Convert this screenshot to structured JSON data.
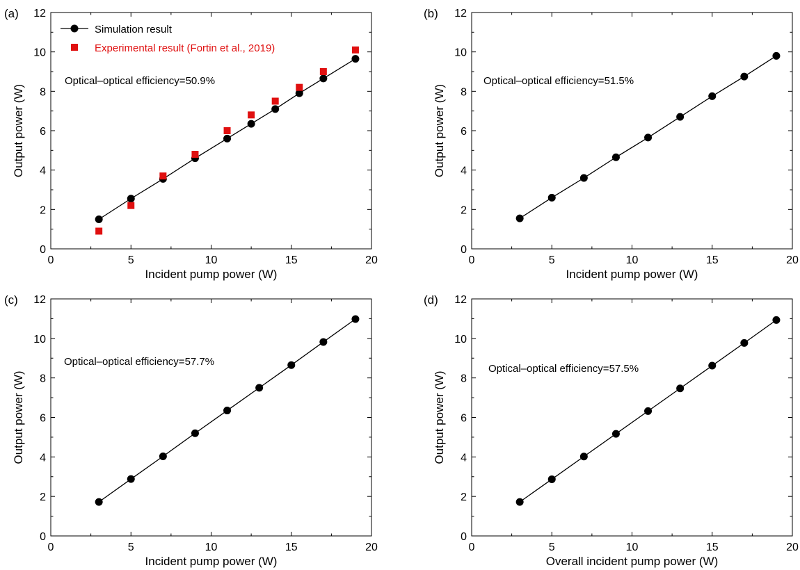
{
  "colors": {
    "simulation": "#000000",
    "experimental": "#e01010",
    "axis": "#000000"
  },
  "chart_data": [
    {
      "type": "scatter",
      "panel_label": "(a)",
      "xlabel": "Incident pump power (W)",
      "ylabel": "Output power (W)",
      "xlim": [
        0,
        20
      ],
      "ylim": [
        0,
        12
      ],
      "xticks": [
        "0",
        "5",
        "10",
        "15",
        "20"
      ],
      "yticks": [
        "0",
        "2",
        "4",
        "6",
        "8",
        "10",
        "12"
      ],
      "annotation": "Optical–optical efficiency=50.9%",
      "legend": [
        "Simulation result",
        "Experimental result (Fortin et al., 2019)"
      ],
      "legend_position": "top-left",
      "series": [
        {
          "name": "Simulation result",
          "marker": "circle",
          "line": true,
          "x": [
            3,
            5,
            7,
            9,
            11,
            12.5,
            14,
            15.5,
            17,
            19
          ],
          "y": [
            1.5,
            2.55,
            3.55,
            4.6,
            5.6,
            6.35,
            7.1,
            7.9,
            8.65,
            9.65
          ]
        },
        {
          "name": "Experimental result (Fortin et al., 2019)",
          "marker": "square",
          "line": false,
          "x": [
            3,
            5,
            7,
            9,
            11,
            12.5,
            14,
            15.5,
            17,
            19
          ],
          "y": [
            0.9,
            2.2,
            3.7,
            4.8,
            6.0,
            6.8,
            7.5,
            8.2,
            9.0,
            10.1
          ]
        }
      ]
    },
    {
      "type": "scatter",
      "panel_label": "(b)",
      "xlabel": "Incident pump power (W)",
      "ylabel": "Output power (W)",
      "xlim": [
        0,
        20
      ],
      "ylim": [
        0,
        12
      ],
      "xticks": [
        "0",
        "5",
        "10",
        "15",
        "20"
      ],
      "yticks": [
        "0",
        "2",
        "4",
        "6",
        "8",
        "10",
        "12"
      ],
      "annotation": "Optical–optical efficiency=51.5%",
      "series": [
        {
          "marker": "circle",
          "line": true,
          "x": [
            3,
            5,
            7,
            9,
            11,
            13,
            15,
            17,
            19
          ],
          "y": [
            1.55,
            2.6,
            3.6,
            4.65,
            5.65,
            6.7,
            7.75,
            8.75,
            9.8
          ]
        }
      ]
    },
    {
      "type": "scatter",
      "panel_label": "(c)",
      "xlabel": "Incident pump power (W)",
      "ylabel": "Output power (W)",
      "xlim": [
        0,
        20
      ],
      "ylim": [
        0,
        12
      ],
      "xticks": [
        "0",
        "5",
        "10",
        "15",
        "20"
      ],
      "yticks": [
        "0",
        "2",
        "4",
        "6",
        "8",
        "10",
        "12"
      ],
      "annotation": "Optical–optical efficiency=57.7%",
      "series": [
        {
          "marker": "circle",
          "line": true,
          "x": [
            3,
            5,
            7,
            9,
            11,
            13,
            15,
            17,
            19
          ],
          "y": [
            1.72,
            2.88,
            4.03,
            5.2,
            6.35,
            7.5,
            8.65,
            9.82,
            10.98
          ]
        }
      ]
    },
    {
      "type": "scatter",
      "panel_label": "(d)",
      "xlabel": "Overall incident pump power (W)",
      "ylabel": "Output power (W)",
      "xlim": [
        0,
        20
      ],
      "ylim": [
        0,
        12
      ],
      "xticks": [
        "0",
        "5",
        "10",
        "15",
        "20"
      ],
      "yticks": [
        "0",
        "2",
        "4",
        "6",
        "8",
        "10",
        "12"
      ],
      "annotation": "Optical–optical efficiency=57.5%",
      "series": [
        {
          "marker": "circle",
          "line": true,
          "x": [
            3,
            5,
            7,
            9,
            11,
            13,
            15,
            17,
            19
          ],
          "y": [
            1.72,
            2.87,
            4.02,
            5.17,
            6.32,
            7.47,
            8.62,
            9.77,
            10.93
          ]
        }
      ]
    }
  ]
}
